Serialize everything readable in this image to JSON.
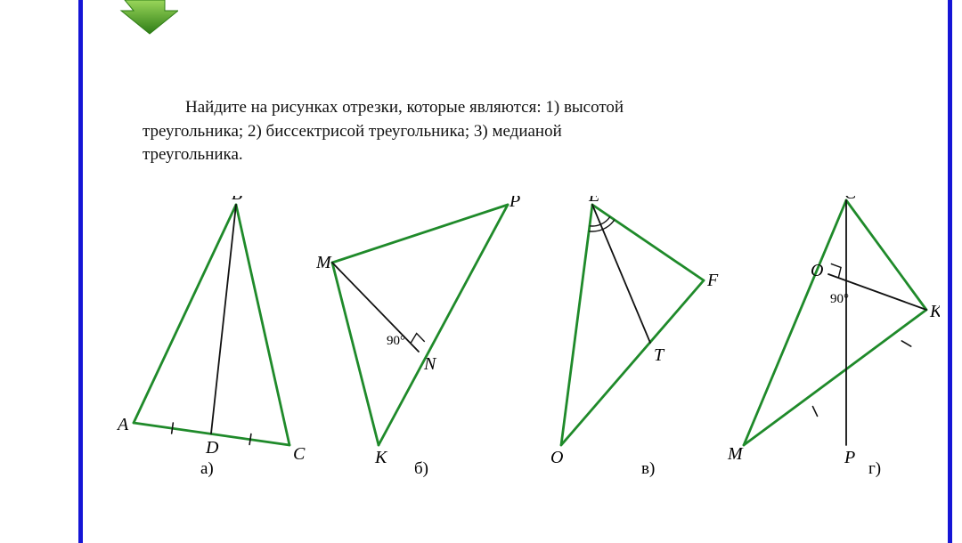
{
  "colors": {
    "border_blue": "#1515d6",
    "triangle_green": "#1f8a2a",
    "inner_line": "#111111",
    "tick": "#111111",
    "text": "#111111",
    "arrow_fill": "#66bb22",
    "arrow_dark": "#2e7d16"
  },
  "task_line1": "Найдите на рисунках отрезки, которые являются: 1) высотой",
  "task_line2": "треугольника; 2) биссектрисой треугольника; 3) медианой",
  "task_line3": "треугольника.",
  "figures": {
    "a": {
      "caption": "а)",
      "labels": {
        "A": "A",
        "B": "B",
        "C": "C",
        "D": "D"
      },
      "points": {
        "A": [
          20,
          255
        ],
        "B": [
          135,
          10
        ],
        "C": [
          195,
          280
        ],
        "D": [
          107,
          267
        ]
      },
      "triangle": [
        "A",
        "B",
        "C"
      ],
      "cevian": [
        "B",
        "D"
      ],
      "ticks": [
        [
          "A",
          "D"
        ],
        [
          "D",
          "C"
        ]
      ]
    },
    "b": {
      "caption": "б)",
      "angle_label": "90°",
      "labels": {
        "M": "M",
        "P": "P",
        "K": "K",
        "N": "N"
      },
      "points": {
        "M": [
          18,
          75
        ],
        "P": [
          215,
          10
        ],
        "K": [
          70,
          280
        ],
        "N": [
          115,
          175
        ]
      },
      "triangle": [
        "M",
        "P",
        "K"
      ],
      "cevian": [
        "M",
        "N"
      ],
      "right_angle_at": "N"
    },
    "v": {
      "caption": "в)",
      "labels": {
        "E": "E",
        "F": "F",
        "O": "O",
        "T": "T"
      },
      "points": {
        "E": [
          65,
          10
        ],
        "F": [
          190,
          95
        ],
        "O": [
          30,
          280
        ],
        "T": [
          130,
          165
        ]
      },
      "triangle": [
        "E",
        "F",
        "O"
      ],
      "cevian": [
        "E",
        "T"
      ],
      "bisector_arcs_at": "E"
    },
    "g": {
      "caption": "г)",
      "angle_label": "90°",
      "labels": {
        "C": "C",
        "K": "K",
        "M": "M",
        "P": "P",
        "O": "O"
      },
      "points": {
        "C": [
          135,
          5
        ],
        "K": [
          225,
          128
        ],
        "M": [
          20,
          280
        ],
        "P": [
          135,
          280
        ],
        "Kmid": [
          180,
          204
        ],
        "O": [
          115,
          88
        ]
      },
      "triangle": [
        "C",
        "K",
        "M"
      ],
      "cevian1": [
        "C",
        "P"
      ],
      "cevian2": [
        "K",
        "O"
      ],
      "ticks": [
        [
          "K",
          "Kmid"
        ],
        [
          "Kmid",
          "M"
        ]
      ],
      "right_angle_at": "O"
    }
  }
}
